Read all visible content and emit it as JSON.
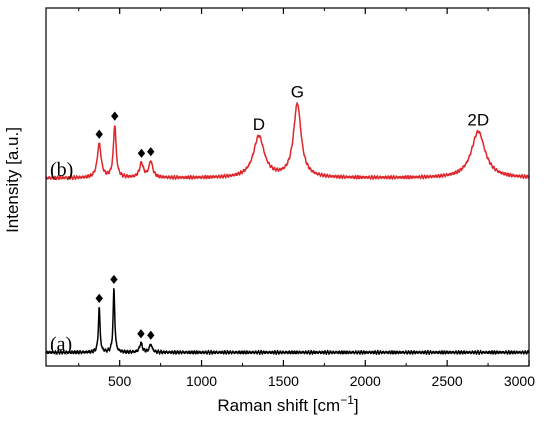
{
  "chart_data": {
    "type": "line",
    "xlabel": "Raman shift [cm",
    "xlabel_sup": "−1",
    "xlabel_end": "]",
    "ylabel": "Intensity [a.u.]",
    "xlim": [
      50,
      3000
    ],
    "ylim": [
      0,
      100
    ],
    "x_ticks": [
      500,
      1000,
      1500,
      2000,
      2500,
      3000
    ],
    "x_tick_labels": [
      "500",
      "1000",
      "1500",
      "2000",
      "2500",
      "3000"
    ],
    "y_ticks_shown": false,
    "grid": false,
    "colors": {
      "b": "#e0262b",
      "a": "#000000",
      "axis": "#000000"
    },
    "series": [
      {
        "name": "(b)",
        "color": "#e0262b",
        "baseline": 52.5,
        "peaks": [
          {
            "x": 375,
            "h": 9.5,
            "w": 14
          },
          {
            "x": 470,
            "h": 14.5,
            "w": 10
          },
          {
            "x": 633,
            "h": 4,
            "w": 14
          },
          {
            "x": 690,
            "h": 4.5,
            "w": 14
          },
          {
            "x": 1350,
            "h": 11.5,
            "w": 40
          },
          {
            "x": 1585,
            "h": 20.5,
            "w": 28
          },
          {
            "x": 2690,
            "h": 13,
            "w": 50
          }
        ],
        "markers": [
          375,
          470,
          633,
          690
        ],
        "peak_labels": [
          {
            "x": 1350,
            "text": "D"
          },
          {
            "x": 1585,
            "text": "G"
          },
          {
            "x": 2690,
            "text": "2D"
          }
        ]
      },
      {
        "name": "(a)",
        "color": "#000000",
        "baseline": 3.8,
        "peaks": [
          {
            "x": 375,
            "h": 12.5,
            "w": 6
          },
          {
            "x": 465,
            "h": 17.8,
            "w": 6
          },
          {
            "x": 630,
            "h": 2.6,
            "w": 10
          },
          {
            "x": 690,
            "h": 2.2,
            "w": 10
          }
        ],
        "markers": [
          375,
          465,
          630,
          690
        ],
        "peak_labels": []
      }
    ]
  }
}
